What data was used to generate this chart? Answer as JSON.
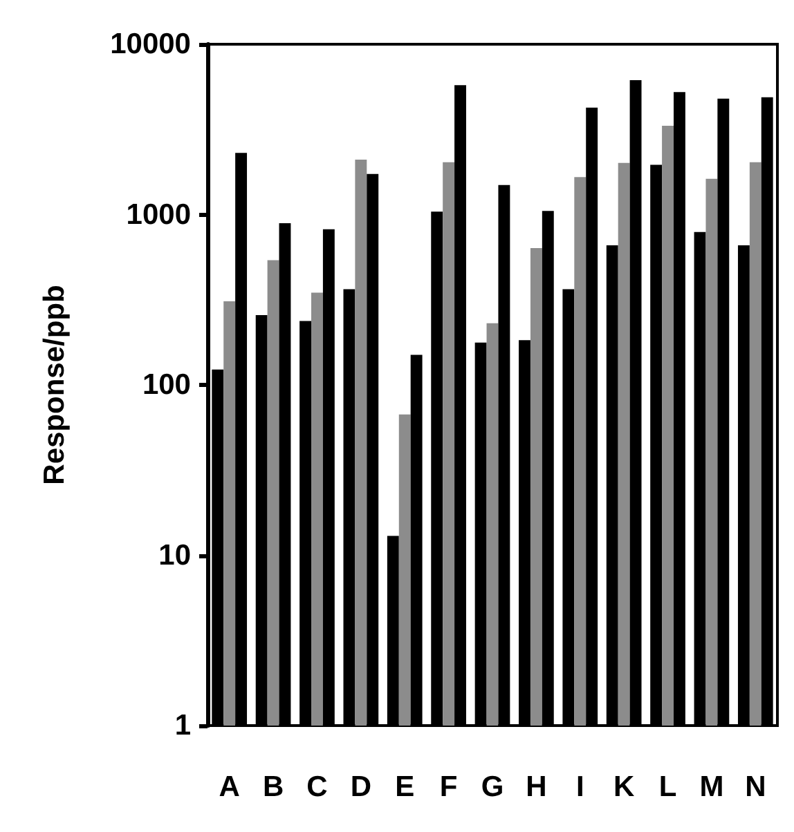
{
  "chart_data": {
    "type": "bar",
    "ylabel": "Response/ppb",
    "categories": [
      "A",
      "B",
      "C",
      "D",
      "E",
      "F",
      "G",
      "H",
      "I",
      "K",
      "L",
      "M",
      "N"
    ],
    "series": [
      {
        "color": "#000000",
        "values": [
          123,
          257,
          237,
          365,
          13,
          1040,
          177,
          183,
          365,
          660,
          1960,
          790,
          660
        ]
      },
      {
        "color": "#8c8c8c",
        "values": [
          310,
          540,
          348,
          2100,
          67,
          2030,
          230,
          635,
          1660,
          2010,
          3320,
          1620,
          2030
        ]
      },
      {
        "color": "#000000",
        "values": [
          2300,
          890,
          820,
          1730,
          150,
          5750,
          1490,
          1050,
          4240,
          6150,
          5240,
          4790,
          4880
        ]
      }
    ],
    "log": true,
    "ylim": [
      1,
      10000
    ],
    "yticks": [
      1,
      10,
      100,
      1000,
      10000
    ],
    "grid": false
  }
}
